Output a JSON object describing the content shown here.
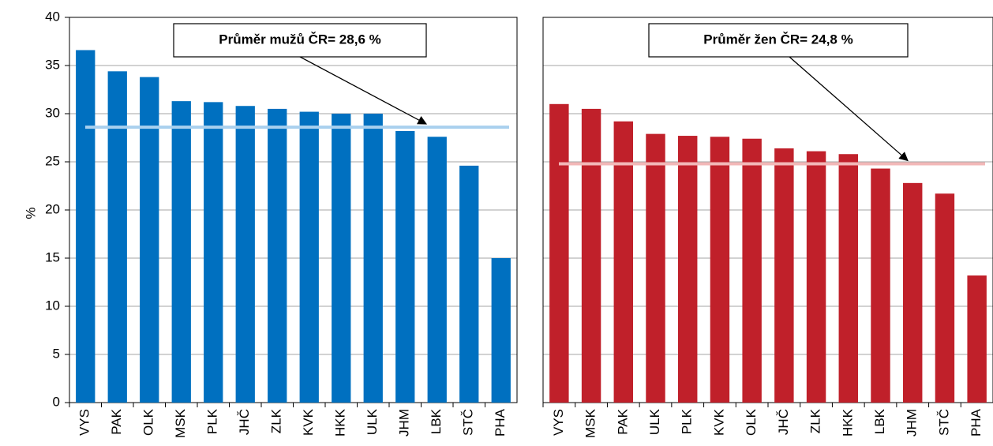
{
  "chart_data": [
    {
      "type": "bar",
      "y_label": "%",
      "categories": [
        "VYS",
        "PAK",
        "OLK",
        "MSK",
        "PLK",
        "JHČ",
        "ZLK",
        "KVK",
        "HKK",
        "ULK",
        "JHM",
        "LBK",
        "STČ",
        "PHA"
      ],
      "values": [
        36.6,
        34.4,
        33.8,
        31.3,
        31.2,
        30.8,
        30.5,
        30.2,
        30.0,
        30.0,
        28.2,
        27.6,
        24.6,
        15.0
      ],
      "color": "#0070c0",
      "ylim": [
        0,
        40
      ],
      "yticks": [
        0,
        5,
        10,
        15,
        20,
        25,
        30,
        35,
        40
      ],
      "ytick_labels": true,
      "grid": true,
      "mean": 28.6,
      "mean_color": "#a9d0ee",
      "mean_label": "Průměr mužů ČR= 28,6 %"
    },
    {
      "type": "bar",
      "categories": [
        "VYS",
        "MSK",
        "PAK",
        "ULK",
        "PLK",
        "KVK",
        "OLK",
        "JHČ",
        "ZLK",
        "HKK",
        "LBK",
        "JHM",
        "STČ",
        "PHA"
      ],
      "values": [
        31.0,
        30.5,
        29.2,
        27.9,
        27.7,
        27.6,
        27.4,
        26.4,
        26.1,
        25.8,
        24.3,
        22.8,
        21.7,
        13.2
      ],
      "color": "#c0202a",
      "ylim": [
        0,
        40
      ],
      "yticks": [
        0,
        5,
        10,
        15,
        20,
        25,
        30,
        35,
        40
      ],
      "ytick_labels": false,
      "grid": true,
      "mean": 24.8,
      "mean_color": "#f2b8b8",
      "mean_label": "Průměr žen ČR= 24,8 %"
    }
  ]
}
